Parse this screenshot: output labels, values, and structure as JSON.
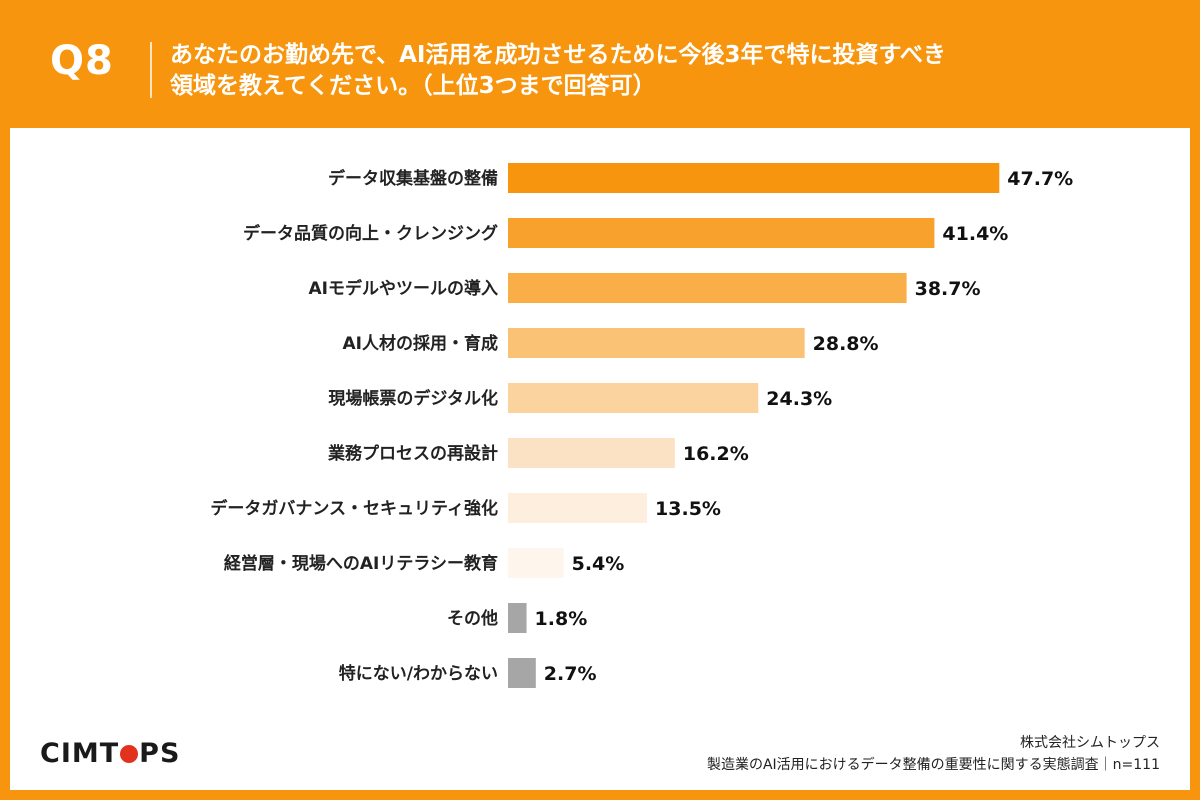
{
  "header": {
    "qnum": "Q8",
    "question_line1": "あなたのお勤め先で、AI活用を成功させるために今後3年で特に投資すべき",
    "question_line2": "領域を教えてください。（上位3つまで回答可）"
  },
  "chart_data": {
    "type": "bar",
    "orientation": "horizontal",
    "unit": "%",
    "categories": [
      "データ収集基盤の整備",
      "データ品質の向上・クレンジング",
      "AIモデルやツールの導入",
      "AI人材の採用・育成",
      "現場帳票のデジタル化",
      "業務プロセスの再設計",
      "データガバナンス・セキュリティ強化",
      "経営層・現場へのAIリテラシー教育",
      "その他",
      "特にない/わからない"
    ],
    "values": [
      47.7,
      41.4,
      38.7,
      28.8,
      24.3,
      16.2,
      13.5,
      5.4,
      1.8,
      2.7
    ],
    "value_labels": [
      "47.7%",
      "41.4%",
      "38.7%",
      "28.8%",
      "24.3%",
      "16.2%",
      "13.5%",
      "5.4%",
      "1.8%",
      "2.7%"
    ],
    "colors": [
      "#F7950E",
      "#F8A12C",
      "#F9AE48",
      "#FAC275",
      "#FBD39E",
      "#FCE2C4",
      "#FDEEDD",
      "#FEF5EC",
      "#A6A6A6",
      "#A6A6A6"
    ],
    "xlim": [
      0,
      100
    ],
    "grid": false
  },
  "footer": {
    "logo_left": "CIMT",
    "logo_right": "PS",
    "company": "株式会社シムトップス",
    "survey": "製造業のAI活用におけるデータ整備の重要性に関する実態調査｜n=111"
  },
  "colors": {
    "background": "#F7950E",
    "panel": "#ffffff",
    "logo_accent": "#E2321E"
  }
}
